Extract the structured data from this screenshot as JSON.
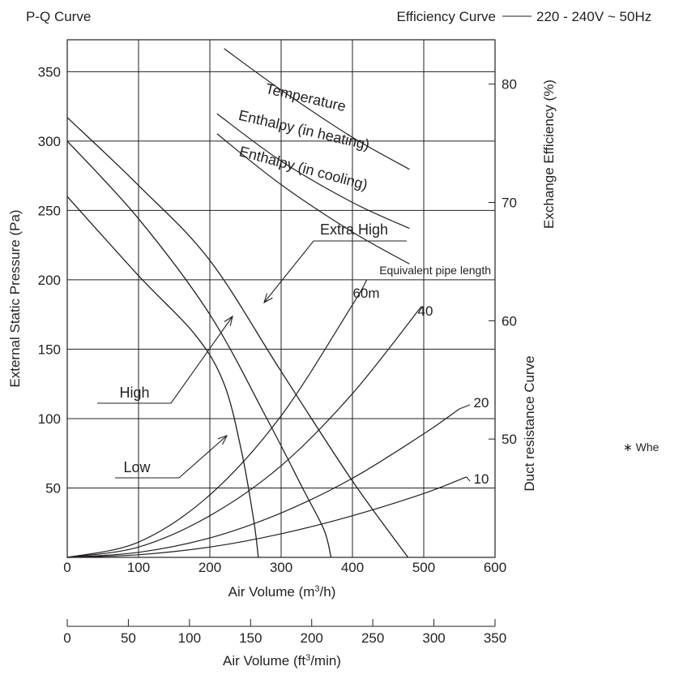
{
  "header": {
    "left": "P-Q Curve",
    "right_label": "Efficiency Curve",
    "right_spec": "220 - 240V ~ 50Hz"
  },
  "side_note": "∗ Whe",
  "chart_data": {
    "type": "line",
    "xlabel_main": "Air Volume (m³/h)",
    "xlabel_main_parts": [
      "Air Volume (m",
      "3",
      "/h)"
    ],
    "xlabel_secondary": "Air Volume (ft³/min)",
    "xlabel_secondary_parts": [
      "Air Volume (ft",
      "3",
      "/min)"
    ],
    "ylabel_left": "External Static Pressure (Pa)",
    "ylabel_right": "Exchange Efficiency (%)",
    "duct_axis_label": "Duct resistance Curve",
    "equivalent_label": "Equivalent pipe length",
    "xlim": [
      0,
      600
    ],
    "ylim": [
      0,
      350
    ],
    "x_ticks": [
      0,
      100,
      200,
      300,
      400,
      500,
      600
    ],
    "y_ticks": [
      50,
      100,
      150,
      200,
      250,
      300,
      350
    ],
    "y2_ticks": [
      50,
      60,
      70,
      80
    ],
    "y2_range": [
      40,
      83.75
    ],
    "ft_ticks": [
      0,
      50,
      100,
      150,
      200,
      250,
      300,
      350
    ],
    "grid": true,
    "pq_series": [
      {
        "name": "Extra High",
        "points": [
          [
            0,
            317
          ],
          [
            100,
            268
          ],
          [
            200,
            214
          ],
          [
            300,
            134
          ],
          [
            400,
            55
          ],
          [
            478,
            0
          ]
        ]
      },
      {
        "name": "High",
        "points": [
          [
            0,
            300
          ],
          [
            100,
            244
          ],
          [
            200,
            175
          ],
          [
            280,
            100
          ],
          [
            330,
            50
          ],
          [
            360,
            20
          ],
          [
            370,
            0
          ]
        ]
      },
      {
        "name": "Low",
        "points": [
          [
            0,
            260
          ],
          [
            100,
            203
          ],
          [
            180,
            160
          ],
          [
            220,
            125
          ],
          [
            245,
            75
          ],
          [
            262,
            25
          ],
          [
            268,
            0
          ]
        ]
      }
    ],
    "duct_series": [
      {
        "name": "60m",
        "label": "60m",
        "points": [
          [
            0,
            0
          ],
          [
            100,
            11
          ],
          [
            200,
            45
          ],
          [
            300,
            102
          ],
          [
            400,
            182
          ],
          [
            420,
            200
          ]
        ]
      },
      {
        "name": "40",
        "label": "40",
        "points": [
          [
            0,
            0
          ],
          [
            100,
            7.4
          ],
          [
            200,
            30
          ],
          [
            300,
            66
          ],
          [
            400,
            118
          ],
          [
            497,
            181
          ]
        ]
      },
      {
        "name": "20",
        "label": "20",
        "points": [
          [
            0,
            0
          ],
          [
            100,
            3.6
          ],
          [
            200,
            14
          ],
          [
            300,
            32
          ],
          [
            400,
            57
          ],
          [
            500,
            89
          ],
          [
            550,
            107
          ]
        ]
      },
      {
        "name": "10",
        "label": "10",
        "points": [
          [
            0,
            0
          ],
          [
            100,
            1.9
          ],
          [
            200,
            7.4
          ],
          [
            300,
            17
          ],
          [
            400,
            30
          ],
          [
            500,
            46
          ],
          [
            560,
            58
          ]
        ]
      }
    ],
    "efficiency_series": [
      {
        "name": "Temperature",
        "points": [
          [
            220,
            83
          ],
          [
            300,
            79.5
          ],
          [
            400,
            75.5
          ],
          [
            480,
            72.8
          ]
        ]
      },
      {
        "name": "Enthalpy (in heating)",
        "points": [
          [
            210,
            77.5
          ],
          [
            300,
            73.5
          ],
          [
            400,
            70
          ],
          [
            480,
            67.8
          ]
        ]
      },
      {
        "name": "Enthalpy (in cooling)",
        "points": [
          [
            210,
            75.8
          ],
          [
            300,
            71.5
          ],
          [
            400,
            67.5
          ],
          [
            480,
            64.8
          ]
        ]
      }
    ],
    "annotations": [
      "Extra High",
      "High",
      "Low"
    ]
  }
}
